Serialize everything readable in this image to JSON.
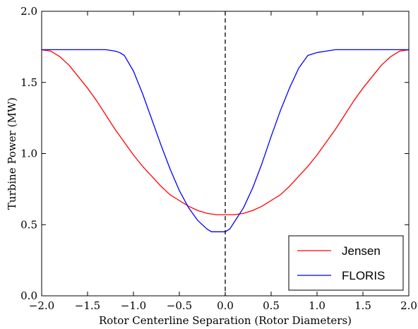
{
  "chart_data": {
    "type": "line",
    "title": "",
    "xlabel": "Rotor Centerline Separation (Rotor Diameters)",
    "ylabel": "Turbine Power (MW)",
    "xlim": [
      -2.0,
      2.0
    ],
    "ylim": [
      0.0,
      2.0
    ],
    "x_ticks": [
      "−2.0",
      "−1.5",
      "−1.0",
      "−0.5",
      "0.0",
      "0.5",
      "1.0",
      "1.5",
      "2.0"
    ],
    "y_ticks": [
      "0.0",
      "0.5",
      "1.0",
      "1.5",
      "2.0"
    ],
    "grid": false,
    "legend_position": "lower-right",
    "vline": {
      "x": 0.0,
      "style": "dashed",
      "color": "#000000"
    },
    "series": [
      {
        "name": "Jensen",
        "color": "#ff0000",
        "x": [
          -2.0,
          -1.9,
          -1.8,
          -1.7,
          -1.6,
          -1.5,
          -1.4,
          -1.3,
          -1.2,
          -1.1,
          -1.0,
          -0.9,
          -0.8,
          -0.7,
          -0.6,
          -0.5,
          -0.4,
          -0.3,
          -0.2,
          -0.1,
          0.0,
          0.1,
          0.2,
          0.3,
          0.4,
          0.5,
          0.6,
          0.7,
          0.8,
          0.9,
          1.0,
          1.1,
          1.2,
          1.3,
          1.4,
          1.5,
          1.6,
          1.7,
          1.8,
          1.9,
          2.0
        ],
        "y": [
          1.73,
          1.72,
          1.68,
          1.62,
          1.54,
          1.46,
          1.37,
          1.27,
          1.17,
          1.08,
          0.99,
          0.91,
          0.84,
          0.77,
          0.71,
          0.67,
          0.63,
          0.6,
          0.58,
          0.57,
          0.57,
          0.57,
          0.58,
          0.6,
          0.63,
          0.67,
          0.71,
          0.77,
          0.84,
          0.91,
          0.99,
          1.08,
          1.17,
          1.27,
          1.37,
          1.46,
          1.54,
          1.62,
          1.68,
          1.72,
          1.73
        ]
      },
      {
        "name": "FLORIS",
        "color": "#0000ff",
        "x": [
          -2.0,
          -1.3,
          -1.2,
          -1.15,
          -1.1,
          -1.0,
          -0.9,
          -0.8,
          -0.7,
          -0.6,
          -0.5,
          -0.4,
          -0.3,
          -0.2,
          -0.15,
          -0.1,
          0.0,
          0.05,
          0.1,
          0.2,
          0.3,
          0.4,
          0.5,
          0.6,
          0.7,
          0.8,
          0.9,
          0.95,
          1.0,
          1.1,
          1.2,
          1.3,
          2.0
        ],
        "y": [
          1.73,
          1.73,
          1.72,
          1.71,
          1.69,
          1.58,
          1.42,
          1.24,
          1.06,
          0.89,
          0.74,
          0.62,
          0.53,
          0.47,
          0.45,
          0.45,
          0.45,
          0.47,
          0.52,
          0.62,
          0.76,
          0.93,
          1.12,
          1.3,
          1.46,
          1.6,
          1.69,
          1.7,
          1.71,
          1.72,
          1.73,
          1.73,
          1.73
        ]
      }
    ]
  }
}
